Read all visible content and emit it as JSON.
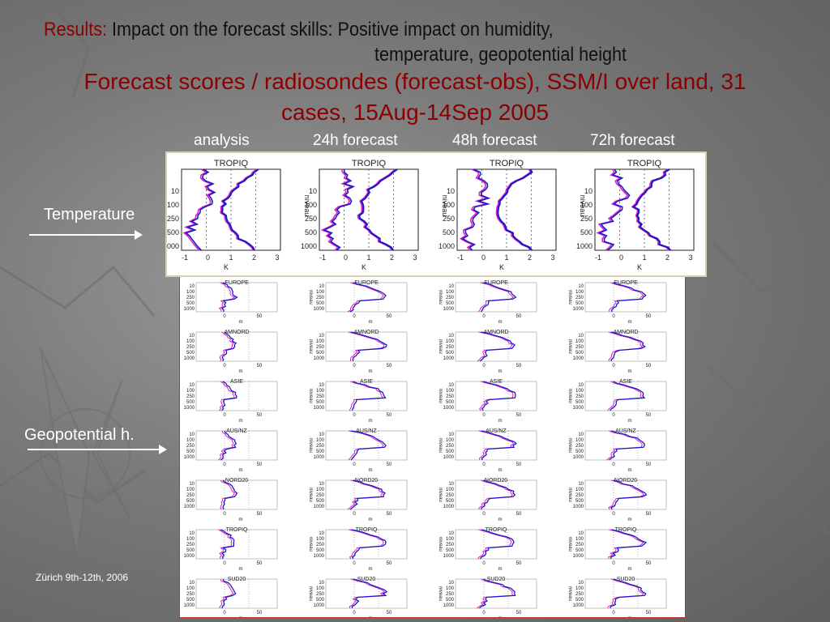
{
  "title": {
    "results_label": "Results:",
    "line1": "Impact on the forecast skills: Positive impact on humidity,",
    "line2": "temperature, geopotential height"
  },
  "subtitle": {
    "line1": "Forecast scores / radiosondes (forecast-obs), SSM/I over land, 31",
    "line2": "cases, 15Aug-14Sep 2005"
  },
  "columns": [
    "analysis",
    "24h forecast",
    "48h forecast",
    "72h forecast"
  ],
  "side_labels": {
    "temperature": "Temperature",
    "geopotential": "Geopotential h."
  },
  "footer": "Zürich 9th-12th, 2006",
  "temperature_panel": {
    "region": "TROPIQ",
    "y_ticks": [
      "10",
      "100",
      "250",
      "500",
      "1000"
    ],
    "x_ticks": [
      "-1",
      "0",
      "1",
      "2",
      "3"
    ],
    "x_unit": "K",
    "y_axis_label": "niveau"
  },
  "geopotential_panel": {
    "regions": [
      "EUROPE",
      "AMNORD",
      "ASIE",
      "AUS/NZ",
      "NORD20",
      "TROPIQ",
      "SUD20"
    ],
    "y_ticks": [
      "10",
      "100",
      "250",
      "500",
      "1000"
    ],
    "x_ticks": [
      "0",
      "50"
    ],
    "x_unit": "m",
    "y_axis_label": "niveau"
  },
  "colors": {
    "title_red": "#8b0000",
    "series_blue": "#1a1acc",
    "series_magenta": "#e020c0",
    "text_white": "#ffffff"
  }
}
